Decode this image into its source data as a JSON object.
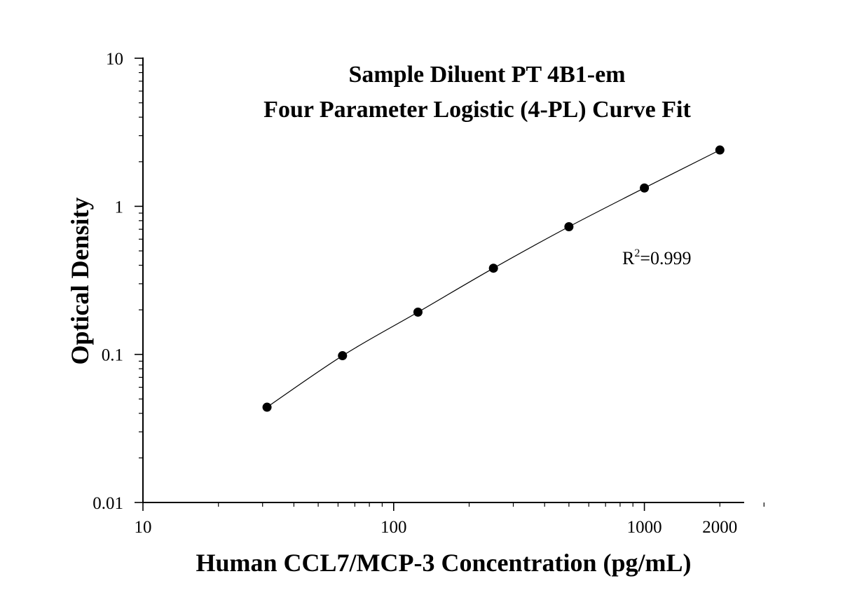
{
  "chart_data": {
    "type": "scatter",
    "title_lines": [
      "Sample Diluent PT 4B1-em",
      "Four Parameter Logistic (4-PL) Curve Fit"
    ],
    "xlabel": "Human CCL7/MCP-3 Concentration (pg/mL)",
    "ylabel": "Optical Density",
    "xscale": "log",
    "yscale": "log",
    "xlim": [
      10,
      3000
    ],
    "ylim": [
      0.01,
      10
    ],
    "x_ticks": [
      10,
      100,
      1000,
      2000
    ],
    "x_tick_labels": [
      "10",
      "100",
      "1000",
      "2000"
    ],
    "y_ticks": [
      0.01,
      0.1,
      1,
      10
    ],
    "y_tick_labels": [
      "0.01",
      "0.1",
      "1",
      "10"
    ],
    "grid": false,
    "series": [
      {
        "x": [
          31.25,
          62.5,
          125,
          250,
          500,
          1000,
          2000
        ],
        "y": [
          0.044,
          0.098,
          0.193,
          0.382,
          0.728,
          1.33,
          2.4
        ]
      }
    ],
    "fit_curve": "4-PL",
    "annotation": {
      "base": "R",
      "sup": "2",
      "rest": "=0.999"
    }
  }
}
